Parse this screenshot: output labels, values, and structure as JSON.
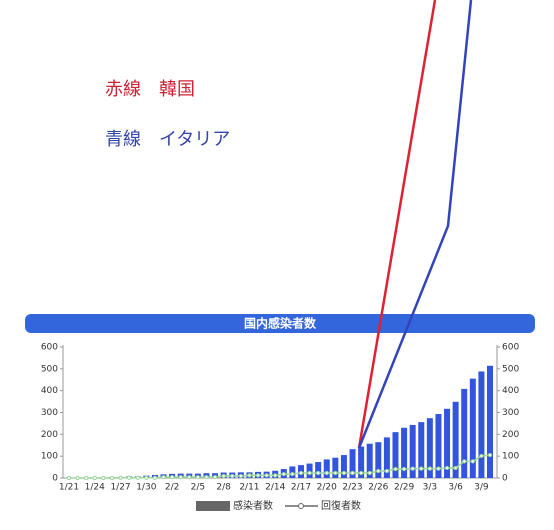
{
  "annotations": [
    "赤線　韓国",
    "青線　イタリア"
  ],
  "chart_data": {
    "type": "bar",
    "title": "国内感染者数",
    "categories": [
      "1/21",
      null,
      null,
      "1/24",
      null,
      null,
      "1/27",
      null,
      null,
      "1/30",
      null,
      null,
      "2/2",
      null,
      null,
      "2/5",
      null,
      null,
      "2/8",
      null,
      null,
      "2/11",
      null,
      null,
      "2/14",
      null,
      null,
      "2/17",
      null,
      null,
      "2/20",
      null,
      null,
      "2/23",
      null,
      null,
      "2/26",
      null,
      null,
      "2/29",
      null,
      null,
      "3/3",
      null,
      null,
      "3/6",
      null,
      null,
      "3/9",
      null
    ],
    "series": [
      {
        "name": "感染者数",
        "color": "#3355dd",
        "values": [
          1,
          1,
          1,
          1,
          2,
          4,
          4,
          7,
          7,
          11,
          14,
          17,
          19,
          20,
          20,
          20,
          22,
          22,
          25,
          25,
          26,
          26,
          28,
          29,
          33,
          41,
          53,
          59,
          66,
          73,
          85,
          93,
          105,
          132,
          144,
          157,
          164,
          186,
          210,
          230,
          243,
          256,
          274,
          293,
          317,
          349,
          408,
          455,
          488,
          514
        ]
      },
      {
        "name": "回復者数",
        "color": "#99d699",
        "values": [
          0,
          0,
          0,
          0,
          0,
          0,
          1,
          1,
          1,
          1,
          1,
          4,
          4,
          4,
          4,
          4,
          4,
          4,
          9,
          9,
          9,
          12,
          12,
          12,
          12,
          18,
          18,
          23,
          23,
          23,
          23,
          23,
          23,
          23,
          23,
          23,
          32,
          32,
          41,
          41,
          43,
          43,
          43,
          43,
          46,
          46,
          76,
          76,
          101,
          105
        ]
      }
    ],
    "ylim": [
      0,
      600
    ],
    "yticks": [
      0,
      100,
      200,
      300,
      400,
      500,
      600
    ],
    "y2lim": [
      0,
      600
    ],
    "y2ticks": [
      0,
      100,
      200,
      300,
      400,
      500,
      600
    ],
    "grid": false
  }
}
